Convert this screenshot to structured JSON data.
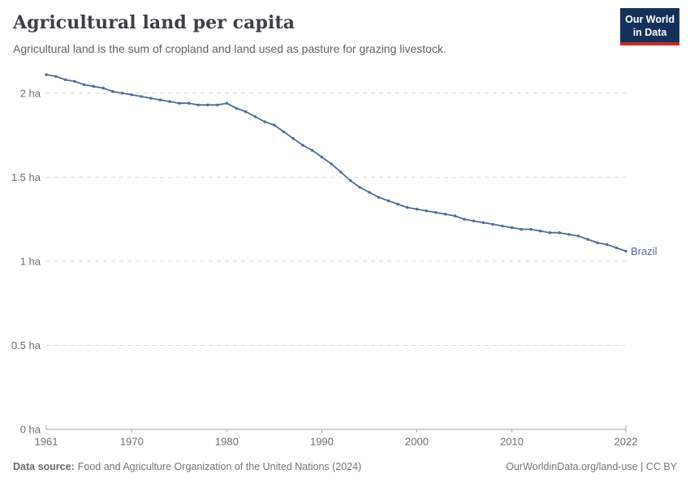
{
  "header": {
    "title": "Agricultural land per capita",
    "subtitle": "Agricultural land is the sum of cropland and land used as pasture for grazing livestock."
  },
  "logo": {
    "line1": "Our World",
    "line2": "in Data",
    "bg_color": "#14315B",
    "accent_color": "#CF2A1C",
    "text_color": "#FFFFFF"
  },
  "footer": {
    "source_label": "Data source:",
    "source_text": "Food and Agriculture Organization of the United Nations (2024)",
    "attribution": "OurWorldinData.org/land-use | CC BY"
  },
  "chart_data": {
    "type": "line",
    "title": "Agricultural land per capita",
    "subtitle": "Agricultural land is the sum of cropland and land used as pasture for grazing livestock.",
    "unit": "ha",
    "grid": "dashed horizontal gridlines",
    "legend_position": "end-of-line label",
    "ylim": [
      0,
      2.25
    ],
    "xlim": [
      1961,
      2022
    ],
    "y_ticks": [
      {
        "value": 2,
        "label": "2 ha"
      },
      {
        "value": 1.5,
        "label": "1.5 ha"
      },
      {
        "value": 1,
        "label": "1 ha"
      },
      {
        "value": 0.5,
        "label": "0.5 ha"
      },
      {
        "value": 0,
        "label": "0 ha"
      }
    ],
    "x_ticks": [
      1961,
      1970,
      1980,
      1990,
      2000,
      2010,
      2022
    ],
    "x": [
      1961,
      1962,
      1963,
      1964,
      1965,
      1966,
      1967,
      1968,
      1969,
      1970,
      1971,
      1972,
      1973,
      1974,
      1975,
      1976,
      1977,
      1978,
      1979,
      1980,
      1981,
      1982,
      1983,
      1984,
      1985,
      1986,
      1987,
      1988,
      1989,
      1990,
      1991,
      1992,
      1993,
      1994,
      1995,
      1996,
      1997,
      1998,
      1999,
      2000,
      2001,
      2002,
      2003,
      2004,
      2005,
      2006,
      2007,
      2008,
      2009,
      2010,
      2011,
      2012,
      2013,
      2014,
      2015,
      2016,
      2017,
      2018,
      2019,
      2020,
      2021,
      2022
    ],
    "series": [
      {
        "name": "Brazil",
        "color": "#4C6A9C",
        "values": [
          2.11,
          2.1,
          2.08,
          2.07,
          2.05,
          2.04,
          2.03,
          2.01,
          2.0,
          1.99,
          1.98,
          1.97,
          1.96,
          1.95,
          1.94,
          1.94,
          1.93,
          1.93,
          1.93,
          1.94,
          1.91,
          1.89,
          1.86,
          1.83,
          1.81,
          1.77,
          1.73,
          1.69,
          1.66,
          1.62,
          1.58,
          1.53,
          1.48,
          1.44,
          1.41,
          1.38,
          1.36,
          1.34,
          1.32,
          1.31,
          1.3,
          1.29,
          1.28,
          1.27,
          1.25,
          1.24,
          1.23,
          1.22,
          1.21,
          1.2,
          1.19,
          1.19,
          1.18,
          1.17,
          1.17,
          1.16,
          1.15,
          1.13,
          1.11,
          1.1,
          1.08,
          1.06
        ]
      }
    ]
  }
}
